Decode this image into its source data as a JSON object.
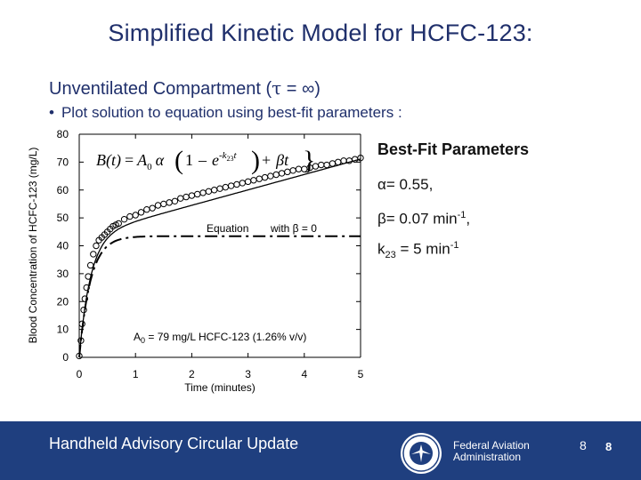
{
  "slide": {
    "title": "Simplified Kinetic Model for HCFC-123:",
    "subtitle_prefix": "Unventilated Compartment (",
    "subtitle_tau": "τ",
    "subtitle_eq": " = ",
    "subtitle_inf": "∞",
    "subtitle_suffix": ")",
    "bullet_dot": "•",
    "bullet": "Plot solution  to equation using best-fit parameters :"
  },
  "params": {
    "heading": "Best-Fit Parameters",
    "alpha_sym": "α",
    "alpha_val": "= 0.55,",
    "beta_sym": "β",
    "beta_val": "= 0.07 min",
    "beta_exp": "-1",
    "beta_end": ",",
    "k_sym": "k",
    "k_sub": "23",
    "k_val": " = 5 min",
    "k_exp": "-1"
  },
  "footer": {
    "left_text": "Handheld Advisory Circular Update",
    "org_line1": "Federal Aviation",
    "org_line2": "Administration",
    "page_num_1": "8",
    "page_num_2": "8"
  },
  "chart_data": {
    "type": "line",
    "xlabel": "Time (minutes)",
    "ylabel": "Blood Concentration of HCFC-123 (mg/L)",
    "xlim": [
      0,
      5
    ],
    "ylim": [
      0,
      80
    ],
    "xticks": [
      "0",
      "1",
      "2",
      "3",
      "4",
      "5"
    ],
    "yticks": [
      "0",
      "10",
      "20",
      "30",
      "40",
      "50",
      "60",
      "70",
      "80"
    ],
    "grid": false,
    "equation": {
      "B": "B(t)",
      "eq": "=",
      "A0": "A",
      "A0sub": "0",
      "alpha": "α",
      "one": "1",
      "minus": "–",
      "e": "e",
      "exp": "-k",
      "expsub": "23",
      "expt": "t",
      "plus": "+",
      "beta_t": "βt"
    },
    "annotations": {
      "equation_label": "Equation",
      "beta0_label": "with β = 0",
      "a0_label": "A",
      "a0_sub": "0",
      "a0_rest": " = 79 mg/L HCFC-123 (1.26% v/v)"
    },
    "params": {
      "A0": 79,
      "alpha": 0.55,
      "beta": 0.07,
      "k23": 5
    },
    "series": [
      {
        "style": "solid-line"
      },
      {
        "style": "dash-dot-line"
      },
      {
        "style": "open-circle-markers",
        "x": [
          0.0,
          0.03,
          0.05,
          0.08,
          0.1,
          0.13,
          0.16,
          0.2,
          0.25,
          0.3,
          0.35,
          0.4,
          0.45,
          0.5,
          0.55,
          0.6,
          0.65,
          0.7,
          0.8,
          0.9,
          1.0,
          1.1,
          1.2,
          1.3,
          1.4,
          1.5,
          1.6,
          1.7,
          1.8,
          1.9,
          2.0,
          2.1,
          2.2,
          2.3,
          2.4,
          2.5,
          2.6,
          2.7,
          2.8,
          2.9,
          3.0,
          3.1,
          3.2,
          3.3,
          3.4,
          3.5,
          3.6,
          3.7,
          3.8,
          3.9,
          4.0,
          4.1,
          4.2,
          4.3,
          4.4,
          4.5,
          4.6,
          4.7,
          4.8,
          4.9,
          5.0
        ],
        "y": [
          0.5,
          6,
          12,
          17,
          21,
          25,
          29,
          33,
          37,
          40,
          42,
          43,
          44,
          45,
          46,
          47,
          47.5,
          48,
          49.5,
          50.5,
          51,
          52,
          53,
          53.5,
          54.5,
          55,
          55.5,
          56,
          57,
          57.5,
          58,
          58.5,
          59,
          59.5,
          60,
          60.5,
          61,
          61.5,
          62,
          62.5,
          63,
          63.5,
          64,
          64.5,
          65,
          65.5,
          66,
          66.5,
          67,
          67.5,
          67.5,
          68,
          68.5,
          69,
          69,
          69.5,
          70,
          70.5,
          70.5,
          71,
          71.5
        ]
      }
    ]
  }
}
